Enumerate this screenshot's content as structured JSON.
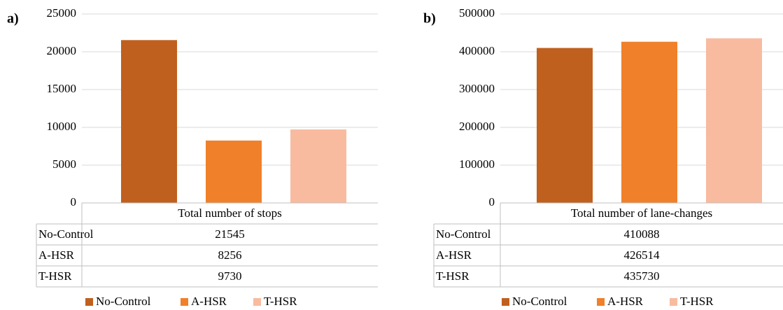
{
  "chart_data": [
    {
      "type": "bar",
      "panel": "a)",
      "categories": [
        "Total number of stops"
      ],
      "series": [
        {
          "name": "No-Control",
          "color": "#c0601e",
          "values": [
            21545
          ]
        },
        {
          "name": "A-HSR",
          "color": "#f0802a",
          "values": [
            8256
          ]
        },
        {
          "name": "T-HSR",
          "color": "#f8bba0",
          "values": [
            9730
          ]
        }
      ],
      "ylim": [
        0,
        25000
      ],
      "yticks": [
        0,
        5000,
        10000,
        15000,
        20000,
        25000
      ],
      "grid": true
    },
    {
      "type": "bar",
      "panel": "b)",
      "categories": [
        "Total number of lane-changes"
      ],
      "series": [
        {
          "name": "No-Control",
          "color": "#c0601e",
          "values": [
            410088
          ]
        },
        {
          "name": "A-HSR",
          "color": "#f0802a",
          "values": [
            426514
          ]
        },
        {
          "name": "T-HSR",
          "color": "#f8bba0",
          "values": [
            435730
          ]
        }
      ],
      "ylim": [
        0,
        500000
      ],
      "yticks": [
        0,
        100000,
        200000,
        300000,
        400000,
        500000
      ],
      "grid": true
    }
  ]
}
